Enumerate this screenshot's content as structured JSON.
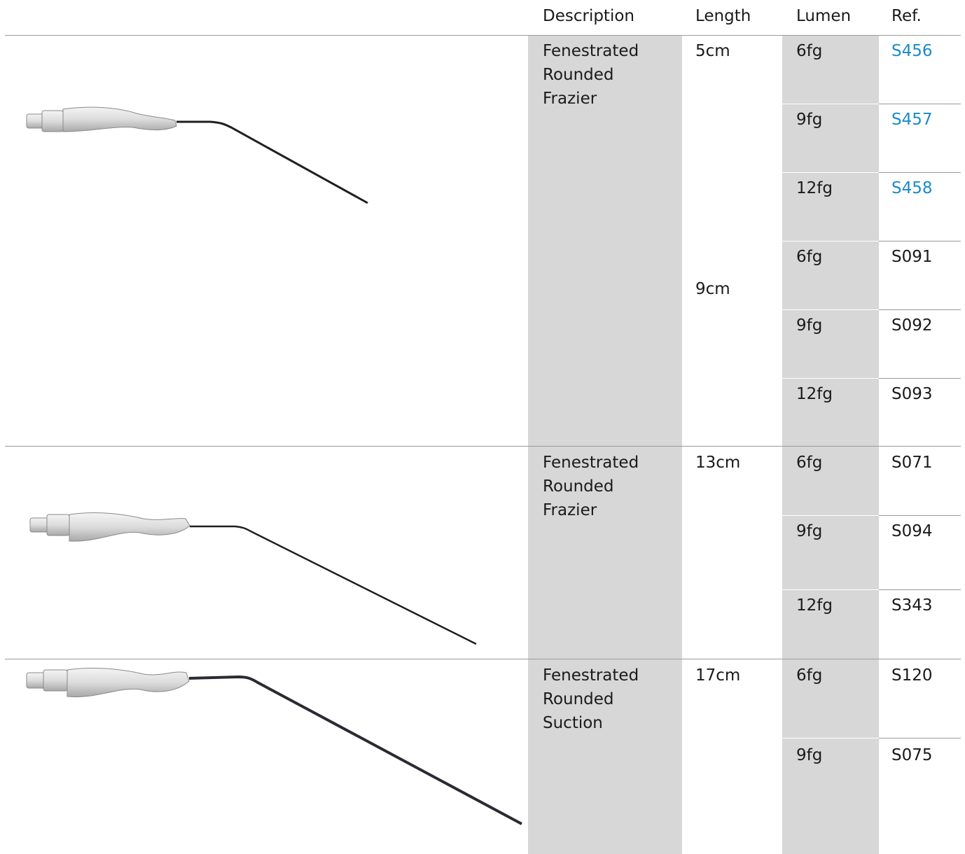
{
  "header": {
    "description": "Description",
    "length": "Length",
    "lumen": "Lumen",
    "ref": "Ref."
  },
  "colors": {
    "link": "#1a8bc8",
    "text": "#1a1a1a",
    "shade": "#d7d7d7",
    "rule": "#9a9a9a"
  },
  "groups": [
    {
      "description": "Fenestrated\nRounded\nFrazier",
      "lengths": [
        "5cm",
        "9cm"
      ],
      "rows": [
        {
          "lumen": "6fg",
          "ref": "S456",
          "link": true
        },
        {
          "lumen": "9fg",
          "ref": "S457",
          "link": true
        },
        {
          "lumen": "12fg",
          "ref": "S458",
          "link": true
        },
        {
          "lumen": "6fg",
          "ref": "S091",
          "link": false
        },
        {
          "lumen": "9fg",
          "ref": "S092",
          "link": false
        },
        {
          "lumen": "12fg",
          "ref": "S093",
          "link": false
        }
      ]
    },
    {
      "description": "Fenestrated\nRounded\nFrazier",
      "lengths": [
        "13cm"
      ],
      "rows": [
        {
          "lumen": "6fg",
          "ref": "S071",
          "link": false
        },
        {
          "lumen": "9fg",
          "ref": "S094",
          "link": false
        },
        {
          "lumen": "12fg",
          "ref": "S343",
          "link": false
        }
      ]
    },
    {
      "description": "Fenestrated\nRounded\nSuction",
      "lengths": [
        "17cm"
      ],
      "rows": [
        {
          "lumen": "6fg",
          "ref": "S120",
          "link": false
        },
        {
          "lumen": "9fg",
          "ref": "S075",
          "link": false
        }
      ]
    }
  ],
  "images": [
    {
      "icon": "frazier-suction-tube-5-9cm-image"
    },
    {
      "icon": "frazier-suction-tube-13cm-image"
    },
    {
      "icon": "suction-tube-17cm-image"
    }
  ]
}
